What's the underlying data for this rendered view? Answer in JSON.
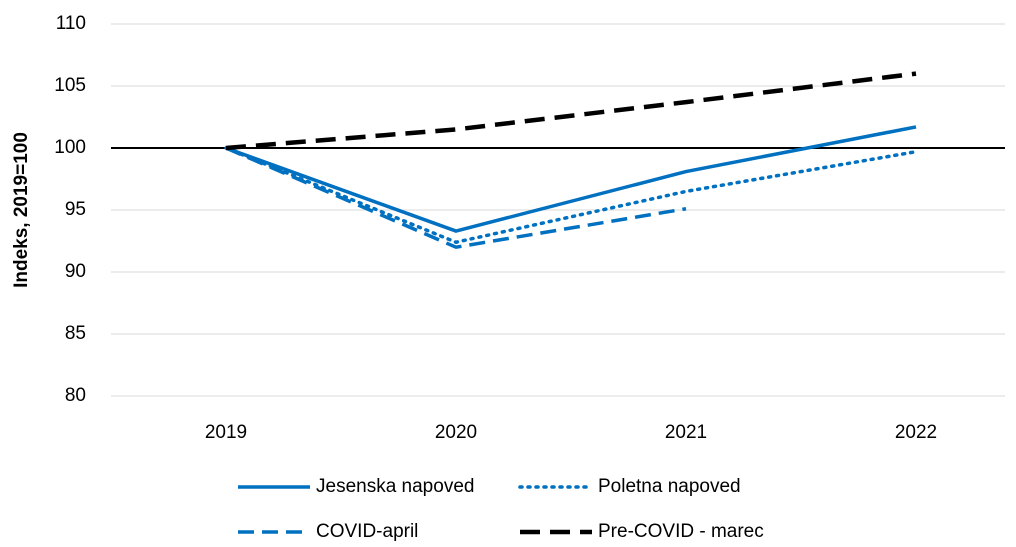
{
  "chart_data": {
    "type": "line",
    "y_label": "Indeks, 2019=100",
    "categories": [
      "2019",
      "2020",
      "2021",
      "2022"
    ],
    "series": [
      {
        "name": "Jesenska napoved",
        "color": "#0070c0",
        "dash": "solid",
        "values": [
          100,
          93.3,
          98.1,
          101.7
        ]
      },
      {
        "name": "Poletna napoved",
        "color": "#0070c0",
        "dash": "dotted",
        "values": [
          100,
          92.4,
          96.5,
          99.7
        ]
      },
      {
        "name": "COVID-april",
        "color": "#0070c0",
        "dash": "dashed",
        "values": [
          100,
          92.0,
          95.1,
          null
        ]
      },
      {
        "name": "Pre-COVID - marec",
        "color": "#000000",
        "dash": "dashed",
        "values": [
          100,
          101.5,
          103.7,
          106.0
        ]
      }
    ],
    "ylim": [
      80,
      110
    ],
    "yticks": [
      80,
      85,
      90,
      95,
      100,
      105,
      110
    ],
    "grid": true,
    "reference_line": 100
  }
}
